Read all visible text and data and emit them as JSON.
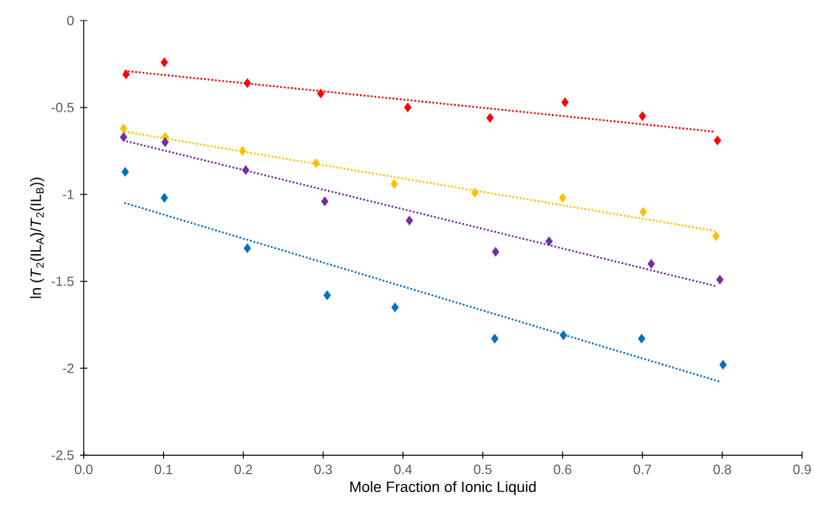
{
  "chart_data": {
    "type": "scatter",
    "xlabel": "Mole Fraction of Ionic Liquid",
    "ylabel": "ln (*T*$_{2}$(IL$_{A}$)/*T*$_{2}$(IL$_{B}$))",
    "xlim": [
      0,
      0.9
    ],
    "ylim": [
      -2.5,
      0
    ],
    "xticks": [
      {
        "value": 0,
        "label": "0.0"
      },
      0.1,
      0.2,
      0.3,
      0.4,
      0.5,
      0.6,
      0.7,
      0.8,
      0.9
    ],
    "yticks": [
      -2.5,
      -2,
      -1.5,
      -1,
      -0.5,
      0
    ],
    "grid": false,
    "marker": "diamond",
    "series": [
      {
        "color": "#ff0000",
        "x": [
          0.053,
          0.101,
          0.205,
          0.297,
          0.406,
          0.509,
          0.603,
          0.7,
          0.794
        ],
        "values": [
          -0.31,
          -0.24,
          -0.36,
          -0.42,
          -0.5,
          -0.56,
          -0.47,
          -0.55,
          -0.69
        ]
      },
      {
        "color": "#ffc000",
        "x": [
          0.05,
          0.102,
          0.199,
          0.291,
          0.389,
          0.49,
          0.6,
          0.701,
          0.792
        ],
        "values": [
          -0.62,
          -0.67,
          -0.75,
          -0.82,
          -0.94,
          -0.99,
          -1.02,
          -1.1,
          -1.24
        ]
      },
      {
        "color": "#7030a0",
        "x": [
          0.05,
          0.102,
          0.203,
          0.302,
          0.408,
          0.516,
          0.583,
          0.711,
          0.797
        ],
        "values": [
          -0.67,
          -0.7,
          -0.86,
          -1.04,
          -1.15,
          -1.33,
          -1.27,
          -1.4,
          -1.49
        ]
      },
      {
        "color": "#0070c0",
        "x": [
          0.052,
          0.101,
          0.205,
          0.305,
          0.39,
          0.515,
          0.601,
          0.699,
          0.801
        ],
        "values": [
          -0.87,
          -1.02,
          -1.31,
          -1.58,
          -1.65,
          -1.83,
          -1.81,
          -1.83,
          -1.98
        ]
      },
      {
        "type": "line",
        "line_style": "dotted",
        "marker": "none",
        "color": "#ff0000",
        "x": [
          0.052,
          0.792
        ],
        "values": [
          -0.29,
          -0.64
        ]
      },
      {
        "type": "line",
        "line_style": "dotted",
        "marker": "none",
        "color": "#ffc000",
        "x": [
          0.052,
          0.791
        ],
        "values": [
          -0.64,
          -1.21
        ]
      },
      {
        "type": "line",
        "line_style": "dotted",
        "marker": "none",
        "color": "#7030a0",
        "x": [
          0.05,
          0.794
        ],
        "values": [
          -0.69,
          -1.53
        ]
      },
      {
        "type": "line",
        "line_style": "dotted",
        "marker": "none",
        "color": "#0070c0",
        "x": [
          0.052,
          0.799
        ],
        "values": [
          -1.05,
          -2.08
        ]
      }
    ]
  }
}
